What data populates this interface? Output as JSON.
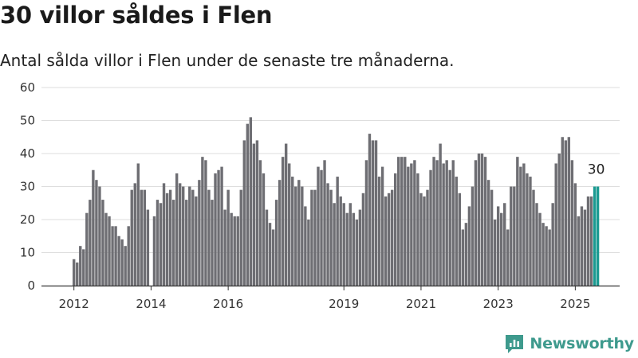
{
  "header": {
    "title": "30 villor såldes i Flen",
    "subtitle": "Antal sålda villor i Flen under de senaste tre månaderna."
  },
  "branding": {
    "logo_text": "Newsworthy",
    "logo_icon": "bar-chart-icon",
    "color": "#3e9a8d"
  },
  "chart_data": {
    "type": "bar",
    "title": "",
    "xlabel": "",
    "ylabel": "",
    "ylim": [
      0,
      60
    ],
    "yticks": [
      0,
      10,
      20,
      30,
      40,
      50,
      60
    ],
    "grid": true,
    "bar_color": "#6e6e73",
    "highlight_color": "#1a9a91",
    "x_tick_labels": [
      "2012",
      "2014",
      "2016",
      "2019",
      "2021",
      "2023",
      "2025"
    ],
    "x_tick_index": [
      0,
      24,
      48,
      84,
      108,
      132,
      156
    ],
    "highlight_label": "30",
    "start": "2012-01",
    "values": [
      8,
      7,
      12,
      11,
      22,
      26,
      35,
      32,
      30,
      26,
      22,
      21,
      18,
      18,
      15,
      14,
      12,
      18,
      29,
      31,
      37,
      29,
      29,
      23,
      null,
      21,
      26,
      25,
      31,
      28,
      29,
      26,
      34,
      31,
      30,
      26,
      30,
      29,
      27,
      32,
      39,
      38,
      29,
      26,
      34,
      35,
      36,
      23,
      29,
      22,
      21,
      21,
      29,
      44,
      49,
      51,
      43,
      44,
      38,
      34,
      23,
      19,
      17,
      26,
      32,
      39,
      43,
      37,
      33,
      30,
      32,
      30,
      24,
      20,
      29,
      29,
      36,
      35,
      38,
      31,
      29,
      25,
      33,
      27,
      25,
      22,
      25,
      22,
      20,
      23,
      28,
      38,
      46,
      44,
      44,
      33,
      36,
      27,
      28,
      29,
      34,
      39,
      39,
      39,
      36,
      37,
      38,
      34,
      28,
      27,
      29,
      35,
      39,
      38,
      43,
      37,
      38,
      35,
      38,
      33,
      28,
      17,
      19,
      24,
      30,
      38,
      40,
      40,
      39,
      32,
      29,
      20,
      24,
      22,
      25,
      17,
      30,
      30,
      39,
      36,
      37,
      34,
      33,
      29,
      25,
      22,
      19,
      18,
      17,
      25,
      37,
      40,
      45,
      44,
      45,
      38,
      31,
      21,
      24,
      23,
      27,
      27,
      30,
      30
    ]
  }
}
